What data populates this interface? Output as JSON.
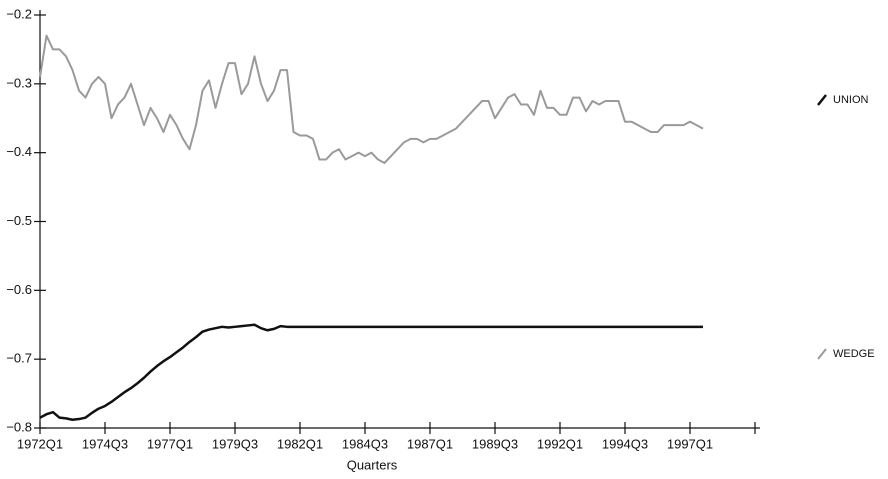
{
  "chart_data": {
    "type": "line",
    "x_label": "Quarters",
    "categories": [
      "1972Q1",
      null,
      null,
      null,
      null,
      null,
      null,
      null,
      null,
      null,
      "1974Q3",
      null,
      null,
      null,
      null,
      null,
      null,
      null,
      null,
      null,
      "1977Q1",
      null,
      null,
      null,
      null,
      null,
      null,
      null,
      null,
      null,
      "1979Q3",
      null,
      null,
      null,
      null,
      null,
      null,
      null,
      null,
      null,
      "1982Q1",
      null,
      null,
      null,
      null,
      null,
      null,
      null,
      null,
      null,
      "1984Q3",
      null,
      null,
      null,
      null,
      null,
      null,
      null,
      null,
      null,
      "1987Q1",
      null,
      null,
      null,
      null,
      null,
      null,
      null,
      null,
      null,
      "1989Q3",
      null,
      null,
      null,
      null,
      null,
      null,
      null,
      null,
      null,
      "1992Q1",
      null,
      null,
      null,
      null,
      null,
      null,
      null,
      null,
      null,
      "1994Q3",
      null,
      null,
      null,
      null,
      null,
      null,
      null,
      null,
      null,
      "1997Q1",
      null,
      null,
      null,
      null,
      null,
      null,
      null,
      null,
      null,
      null
    ],
    "series": [
      {
        "name": "UNION",
        "color": "#111111",
        "width": 2.5,
        "values": [
          -0.785,
          -0.78,
          -0.777,
          -0.785,
          -0.786,
          -0.788,
          -0.787,
          -0.785,
          -0.778,
          -0.772,
          -0.768,
          -0.762,
          -0.755,
          -0.748,
          -0.742,
          -0.735,
          -0.727,
          -0.718,
          -0.71,
          -0.703,
          -0.697,
          -0.69,
          -0.683,
          -0.675,
          -0.668,
          -0.66,
          -0.657,
          -0.655,
          -0.653,
          -0.654,
          -0.653,
          -0.652,
          -0.651,
          -0.65,
          -0.655,
          -0.658,
          -0.656,
          -0.652,
          -0.653,
          -0.653,
          -0.653,
          -0.653,
          -0.653,
          -0.653,
          -0.653,
          -0.653,
          -0.653,
          -0.653,
          -0.653,
          -0.653,
          -0.653,
          -0.653,
          -0.653,
          -0.653,
          -0.653,
          -0.653,
          -0.653,
          -0.653,
          -0.653,
          -0.653,
          -0.653,
          -0.653,
          -0.653,
          -0.653,
          -0.653,
          -0.653,
          -0.653,
          -0.653,
          -0.653,
          -0.653,
          -0.653,
          -0.653,
          -0.653,
          -0.653,
          -0.653,
          -0.653,
          -0.653,
          -0.653,
          -0.653,
          -0.653,
          -0.653,
          -0.653,
          -0.653,
          -0.653,
          -0.653,
          -0.653,
          -0.653,
          -0.653,
          -0.653,
          -0.653,
          -0.653,
          -0.653,
          -0.653,
          -0.653,
          -0.653,
          -0.653,
          -0.653,
          -0.653,
          -0.653,
          -0.653,
          -0.653,
          -0.653,
          -0.653,
          null,
          null,
          null,
          null,
          null,
          null,
          null,
          null
        ]
      },
      {
        "name": "WEDGE",
        "color": "#9a9a9a",
        "width": 2,
        "values": [
          -0.29,
          -0.23,
          -0.25,
          -0.25,
          -0.26,
          -0.28,
          -0.31,
          -0.32,
          -0.3,
          -0.29,
          -0.3,
          -0.35,
          -0.33,
          -0.32,
          -0.3,
          -0.33,
          -0.36,
          -0.335,
          -0.35,
          -0.37,
          -0.345,
          -0.36,
          -0.38,
          -0.395,
          -0.36,
          -0.31,
          -0.295,
          -0.335,
          -0.3,
          -0.27,
          -0.27,
          -0.315,
          -0.3,
          -0.26,
          -0.3,
          -0.325,
          -0.31,
          -0.28,
          -0.28,
          -0.37,
          -0.375,
          -0.375,
          -0.38,
          -0.41,
          -0.41,
          -0.4,
          -0.395,
          -0.41,
          -0.405,
          -0.4,
          -0.405,
          -0.4,
          -0.41,
          -0.415,
          -0.405,
          -0.395,
          -0.385,
          -0.38,
          -0.38,
          -0.385,
          -0.38,
          -0.38,
          -0.375,
          -0.37,
          -0.365,
          -0.355,
          -0.345,
          -0.335,
          -0.325,
          -0.325,
          -0.35,
          -0.335,
          -0.32,
          -0.315,
          -0.33,
          -0.33,
          -0.345,
          -0.31,
          -0.335,
          -0.335,
          -0.345,
          -0.345,
          -0.32,
          -0.32,
          -0.34,
          -0.325,
          -0.33,
          -0.325,
          -0.325,
          -0.325,
          -0.355,
          -0.355,
          -0.36,
          -0.365,
          -0.37,
          -0.37,
          -0.36,
          -0.36,
          -0.36,
          -0.36,
          -0.355,
          -0.36,
          -0.365,
          null,
          null,
          null,
          null,
          null,
          null,
          null,
          null
        ]
      }
    ],
    "ylim": [
      -0.8,
      -0.2
    ],
    "yticks": [
      {
        "value": -0.8,
        "label": "−0.8"
      },
      {
        "value": -0.7,
        "label": "−0.7"
      },
      {
        "value": -0.6,
        "label": "−0.6"
      },
      {
        "value": -0.5,
        "label": "−0.5"
      },
      {
        "value": -0.4,
        "label": "−0.4"
      },
      {
        "value": -0.3,
        "label": "−0.3"
      },
      {
        "value": -0.2,
        "label": "−0.2"
      }
    ],
    "legend": "right"
  }
}
